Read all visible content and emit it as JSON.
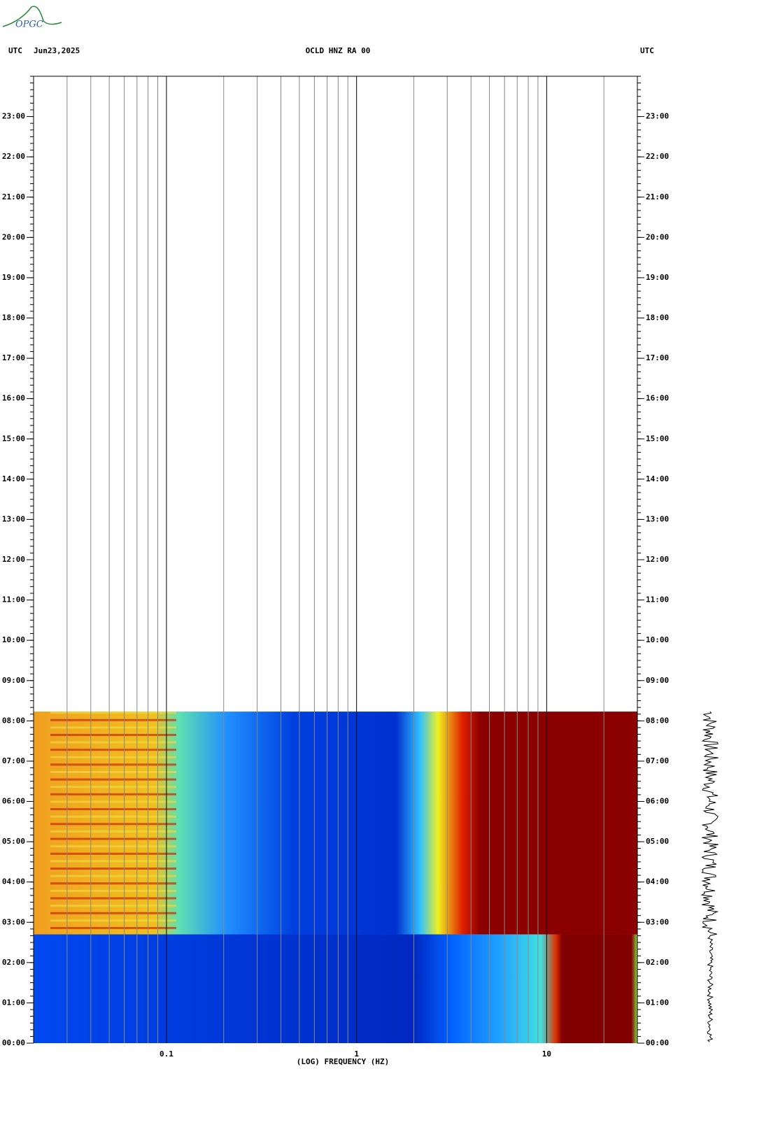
{
  "logo": "OPGC",
  "chart_data": {
    "type": "spectrogram",
    "title": "OCLD HNZ RA 00",
    "date": "Jun23,2025",
    "left_axis_label": "UTC",
    "right_axis_label": "UTC",
    "x_label": "(LOG) FREQUENCY (HZ)",
    "x_log": true,
    "xlim": [
      0.02,
      30
    ],
    "xticks": [
      0.1,
      1,
      10
    ],
    "x_minor_grid": [
      0.03,
      0.04,
      0.05,
      0.06,
      0.07,
      0.08,
      0.09,
      0.2,
      0.3,
      0.4,
      0.5,
      0.6,
      0.7,
      0.8,
      0.9,
      2,
      3,
      4,
      5,
      6,
      7,
      8,
      9,
      20
    ],
    "ylim": [
      0,
      24
    ],
    "yticks": [
      {
        "value": 0,
        "label": "00:00"
      },
      {
        "value": 1,
        "label": "01:00"
      },
      {
        "value": 2,
        "label": "02:00"
      },
      {
        "value": 3,
        "label": "03:00"
      },
      {
        "value": 4,
        "label": "04:00"
      },
      {
        "value": 5,
        "label": "05:00"
      },
      {
        "value": 6,
        "label": "06:00"
      },
      {
        "value": 7,
        "label": "07:00"
      },
      {
        "value": 8,
        "label": "08:00"
      },
      {
        "value": 9,
        "label": "09:00"
      },
      {
        "value": 10,
        "label": "10:00"
      },
      {
        "value": 11,
        "label": "11:00"
      },
      {
        "value": 12,
        "label": "12:00"
      },
      {
        "value": 13,
        "label": "13:00"
      },
      {
        "value": 14,
        "label": "14:00"
      },
      {
        "value": 15,
        "label": "15:00"
      },
      {
        "value": 16,
        "label": "16:00"
      },
      {
        "value": 17,
        "label": "17:00"
      },
      {
        "value": 18,
        "label": "18:00"
      },
      {
        "value": 19,
        "label": "19:00"
      },
      {
        "value": 20,
        "label": "20:00"
      },
      {
        "value": 21,
        "label": "21:00"
      },
      {
        "value": 22,
        "label": "22:00"
      },
      {
        "value": 23,
        "label": "23:00"
      }
    ],
    "data_end": 8.23,
    "event_onset": 2.7
  }
}
